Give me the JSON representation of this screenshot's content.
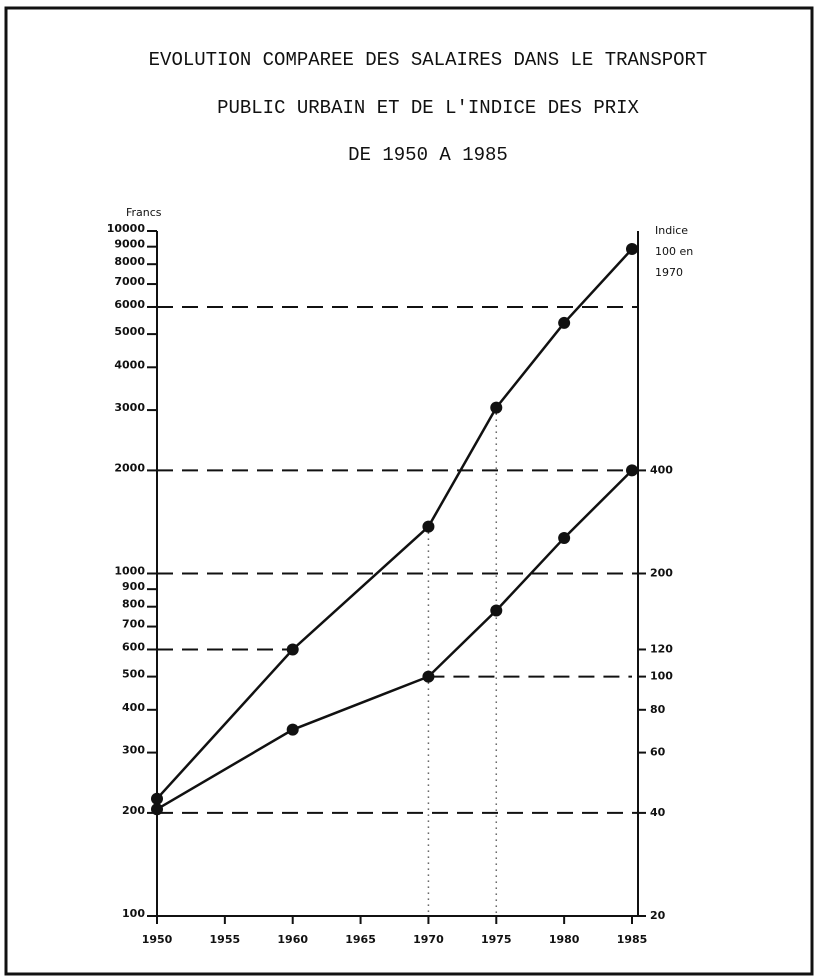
{
  "chart_data": {
    "type": "line",
    "title": [
      "EVOLUTION COMPAREE DES SALAIRES DANS  LE TRANSPORT",
      "PUBLIC URBAIN ET DE L'INDICE DES PRIX",
      "DE 1950 A 1985"
    ],
    "ylabel": "Francs",
    "y2label": [
      "Indice",
      "100 en",
      "1970"
    ],
    "x": [
      1950,
      1960,
      1970,
      1975,
      1980,
      1985
    ],
    "xlim": [
      1950,
      1985
    ],
    "xticks": [
      1950,
      1955,
      1960,
      1965,
      1970,
      1975,
      1980,
      1985
    ],
    "log_scale": true,
    "ylim": [
      100,
      10000
    ],
    "yticks": [
      100,
      200,
      300,
      400,
      500,
      600,
      700,
      800,
      900,
      1000,
      2000,
      3000,
      4000,
      5000,
      6000,
      7000,
      8000,
      9000,
      10000
    ],
    "y2lim": [
      20,
      2000
    ],
    "y2ticks": [
      20,
      40,
      60,
      80,
      100,
      120,
      200,
      400
    ],
    "series": [
      {
        "color": "#111111",
        "values": [
          220,
          600,
          1370,
          3050,
          5390,
          8860
        ]
      },
      {
        "color": "#111111",
        "axis": "y2",
        "values": [
          41,
          70,
          100,
          156,
          254,
          400
        ]
      }
    ],
    "dashed_lines": [
      {
        "y": 200
      },
      {
        "y": 600,
        "x": [
          1950,
          1960
        ]
      },
      {
        "y": 1000
      },
      {
        "y": 2000
      },
      {
        "y": 6000
      },
      {
        "y": 500,
        "x": [
          1970,
          1985
        ]
      }
    ],
    "dotted_x": [
      1970,
      1975
    ]
  }
}
